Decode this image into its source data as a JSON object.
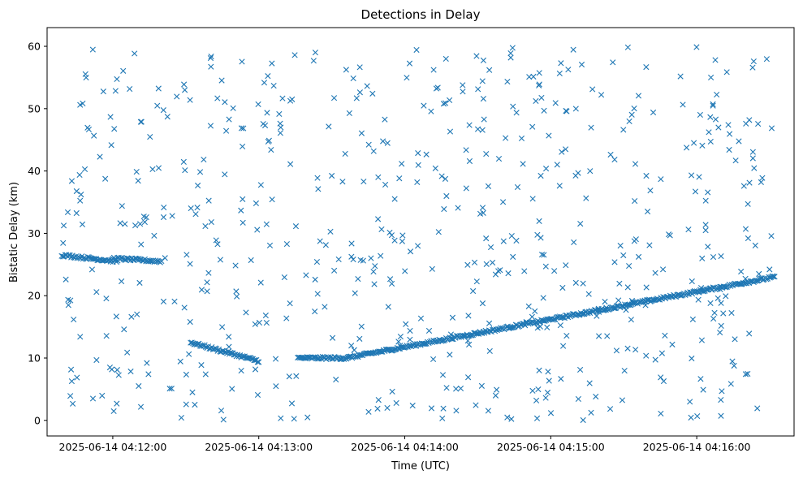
{
  "chart_data": {
    "type": "scatter",
    "title": "Detections in Delay",
    "xlabel": "Time (UTC)",
    "ylabel": "Bistatic Delay (km)",
    "marker": "x",
    "color": "#1f77b4",
    "grid": false,
    "xlim": [
      "2025-06-14 04:11:33",
      "2025-06-14 04:16:40"
    ],
    "ylim": [
      -2.5,
      63
    ],
    "xticks": [
      "2025-06-14 04:12:00",
      "2025-06-14 04:13:00",
      "2025-06-14 04:14:00",
      "2025-06-14 04:15:00",
      "2025-06-14 04:16:00"
    ],
    "yticks": [
      0,
      10,
      20,
      30,
      40,
      50,
      60
    ],
    "series": [
      {
        "name": "",
        "note": "Dense linear track of detections rising from about 10 km to about 23 km; plus scattered clutter",
        "points": []
      }
    ],
    "track_segments": [
      {
        "x": [
          "2025-06-14 04:11:39",
          "2025-06-14 04:12:02"
        ],
        "y": [
          26.5,
          25.5
        ]
      },
      {
        "x": [
          "2025-06-14 04:12:00",
          "2025-06-14 04:12:20"
        ],
        "y": [
          26.0,
          25.5
        ]
      },
      {
        "x": [
          "2025-06-14 04:12:32",
          "2025-06-14 04:13:00"
        ],
        "y": [
          12.5,
          9.5
        ]
      },
      {
        "x": [
          "2025-06-14 04:13:16",
          "2025-06-14 04:13:36"
        ],
        "y": [
          10.0,
          10.0
        ]
      },
      {
        "x": [
          "2025-06-14 04:13:36",
          "2025-06-14 04:16:32"
        ],
        "y": [
          10.0,
          23.0
        ]
      }
    ]
  }
}
